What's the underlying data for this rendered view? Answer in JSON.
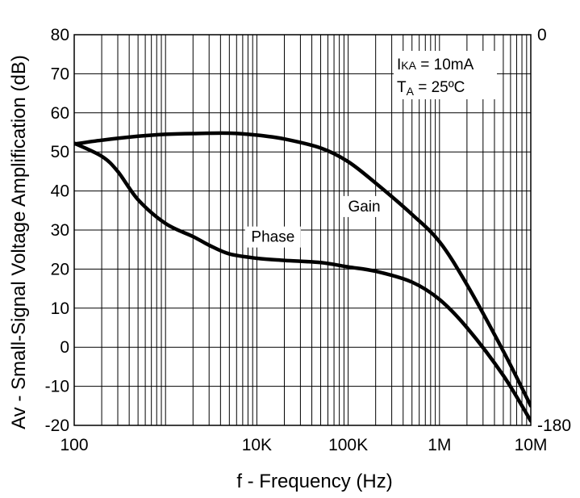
{
  "chart_data": {
    "type": "line",
    "title": "",
    "xlabel": "f - Frequency (Hz)",
    "ylabel": "Av - Small-Signal Voltage Amplification (dB)",
    "y2label": "",
    "x_scale": "log",
    "xlim": [
      100,
      10000000
    ],
    "ylim": [
      -20,
      80
    ],
    "y2lim": [
      -180,
      0
    ],
    "grid": true,
    "x_ticks": [
      {
        "value": 100,
        "label": "100"
      },
      {
        "value": 10000,
        "label": "10K"
      },
      {
        "value": 100000,
        "label": "100K"
      },
      {
        "value": 1000000,
        "label": "1M"
      },
      {
        "value": 10000000,
        "label": "10M"
      }
    ],
    "y_ticks": [
      {
        "value": 80,
        "label": "80"
      },
      {
        "value": 70,
        "label": "70"
      },
      {
        "value": 60,
        "label": "60"
      },
      {
        "value": 50,
        "label": "50"
      },
      {
        "value": 40,
        "label": "40"
      },
      {
        "value": 30,
        "label": "30"
      },
      {
        "value": 20,
        "label": "20"
      },
      {
        "value": 10,
        "label": "10"
      },
      {
        "value": 0,
        "label": "0"
      },
      {
        "value": -10,
        "label": "-10"
      },
      {
        "value": -20,
        "label": "-20"
      }
    ],
    "y2_ticks": [
      {
        "value": 0,
        "label": "0"
      },
      {
        "value": -180,
        "label": "-180"
      }
    ],
    "annotations": {
      "current_main": "I",
      "current_sub": "KA",
      "current_value": " = 10mA",
      "temp_main": "T",
      "temp_sub": "A",
      "temp_value": " = 25ºC"
    },
    "series": [
      {
        "name": "Phase",
        "axis": "y2",
        "x": [
          100,
          200,
          300,
          500,
          1000,
          2000,
          3000,
          5000,
          10000,
          20000,
          50000,
          100000,
          200000,
          500000,
          1000000,
          2000000,
          5000000,
          10000000
        ],
        "values": [
          -50,
          -56,
          -63,
          -76,
          -87,
          -93,
          -97,
          -101,
          -103,
          -104,
          -105,
          -107,
          -109,
          -114,
          -122,
          -135,
          -157,
          -178
        ]
      },
      {
        "name": "Gain",
        "axis": "y",
        "x": [
          100,
          200,
          500,
          1000,
          2000,
          5000,
          10000,
          20000,
          50000,
          100000,
          200000,
          500000,
          1000000,
          2000000,
          5000000,
          10000000
        ],
        "values": [
          52,
          53,
          54,
          54.5,
          54.7,
          54.8,
          54.3,
          53.3,
          51,
          47.5,
          42,
          34,
          27,
          16,
          -1,
          -15
        ]
      }
    ]
  }
}
